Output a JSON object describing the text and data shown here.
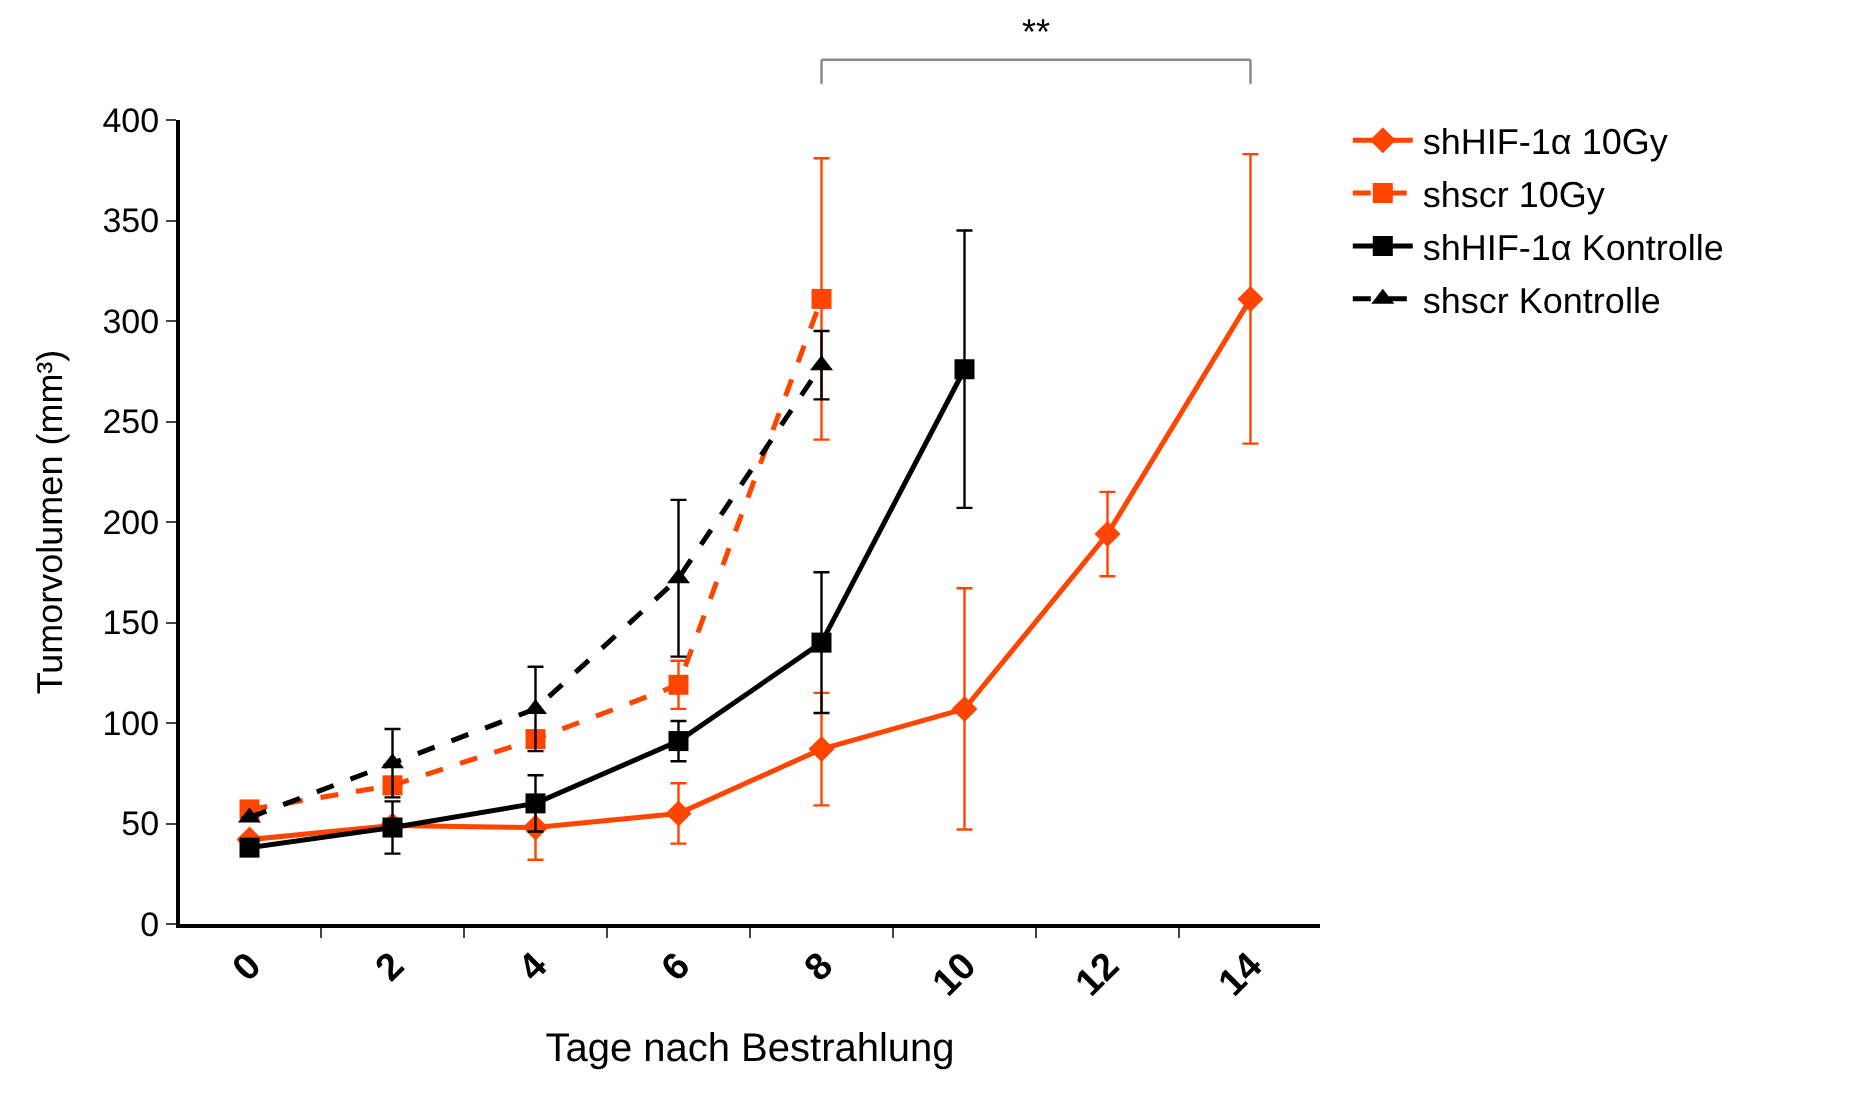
{
  "chart_data": {
    "type": "line",
    "xlabel": "Tage nach Bestrahlung",
    "ylabel": "Tumorvolumen (mm³)",
    "categories": [
      "0",
      "2",
      "4",
      "6",
      "8",
      "10",
      "12",
      "14"
    ],
    "ylim": [
      0,
      400
    ],
    "yticks": [
      0,
      50,
      100,
      150,
      200,
      250,
      300,
      350,
      400
    ],
    "legend": "right",
    "annotations": [
      "**"
    ],
    "series": [
      {
        "name": "shHIF-1α 10Gy",
        "color": "#ff4500",
        "marker": "diamond",
        "line_style": "solid",
        "values": [
          42,
          49,
          48,
          55,
          87,
          107,
          194,
          311
        ],
        "errors": [
          null,
          null,
          16,
          15,
          28,
          60,
          21,
          72
        ]
      },
      {
        "name": "shscr 10Gy",
        "color": "#ff4500",
        "marker": "square",
        "line_style": "dashed",
        "values": [
          57,
          69,
          92,
          119,
          311,
          null,
          null,
          null
        ],
        "errors": [
          null,
          null,
          null,
          12,
          70,
          null,
          null,
          null
        ]
      },
      {
        "name": "shHIF-1α Kontrolle",
        "color": "#000000",
        "marker": "square",
        "line_style": "solid",
        "values": [
          38,
          48,
          60,
          91,
          140,
          276,
          null,
          null
        ],
        "errors": [
          null,
          13,
          14,
          10,
          35,
          69,
          null,
          null
        ]
      },
      {
        "name": "shscr Kontrolle",
        "color": "#000000",
        "marker": "triangle",
        "line_style": "dashed",
        "values": [
          53,
          80,
          107,
          172,
          278,
          null,
          null,
          null
        ],
        "errors": [
          null,
          17,
          21,
          39,
          17,
          null,
          null,
          null
        ]
      }
    ]
  }
}
